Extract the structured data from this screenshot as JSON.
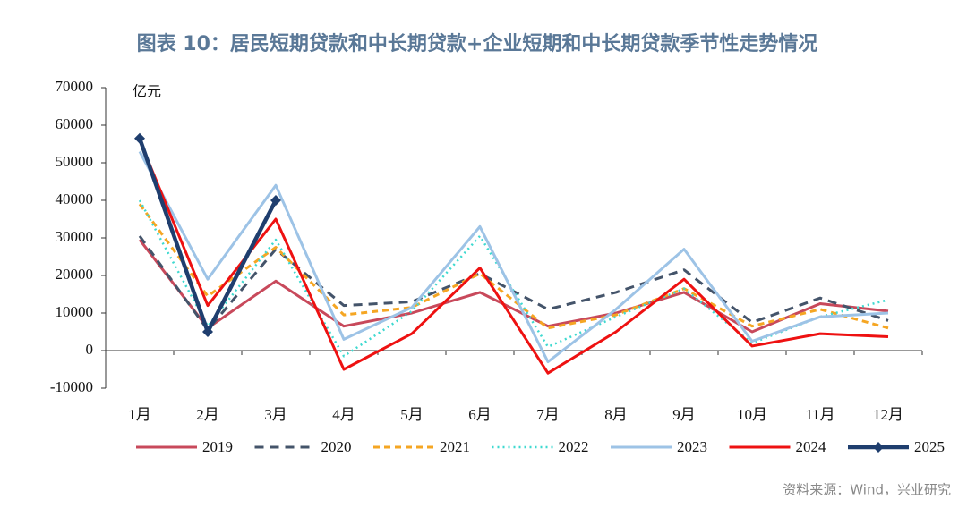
{
  "chart_data": {
    "type": "line",
    "title": "图表 10：居民短期贷款和中长期贷款+企业短期和中长期贷款季节性走势情况",
    "y_unit": "亿元",
    "source": "资料来源：Wind，兴业研究",
    "categories": [
      "1月",
      "2月",
      "3月",
      "4月",
      "5月",
      "6月",
      "7月",
      "8月",
      "9月",
      "10月",
      "11月",
      "12月"
    ],
    "ylim": [
      -10000,
      70000
    ],
    "yticks": [
      -10000,
      0,
      10000,
      20000,
      30000,
      40000,
      50000,
      60000,
      70000
    ],
    "legend": "bottom",
    "series": [
      {
        "name": "2019",
        "color": "#c8495b",
        "style": "solid",
        "values": [
          29500,
          6000,
          18500,
          6500,
          10000,
          15500,
          6500,
          10000,
          15500,
          5000,
          12500,
          10500
        ]
      },
      {
        "name": "2020",
        "color": "#44546a",
        "style": "dashed",
        "values": [
          30500,
          5500,
          27000,
          12000,
          13000,
          20500,
          11000,
          15500,
          21500,
          7500,
          14000,
          8000
        ]
      },
      {
        "name": "2021",
        "color": "#f5a623",
        "style": "dashed",
        "values": [
          39000,
          14500,
          27500,
          9500,
          11500,
          20500,
          6000,
          9500,
          16500,
          6500,
          11000,
          6000
        ]
      },
      {
        "name": "2022",
        "color": "#3fd9d0",
        "style": "dotted",
        "values": [
          40000,
          6500,
          29500,
          -1500,
          10500,
          30500,
          1000,
          9000,
          16500,
          2000,
          9000,
          13500
        ]
      },
      {
        "name": "2023",
        "color": "#9dc3e6",
        "style": "solid",
        "values": [
          53000,
          19000,
          44000,
          3000,
          11500,
          33000,
          -3000,
          11000,
          27000,
          2500,
          9000,
          10000
        ]
      },
      {
        "name": "2024",
        "color": "#ee1111",
        "style": "solid",
        "values": [
          56000,
          12000,
          35000,
          -5000,
          4500,
          22000,
          -6000,
          5000,
          19000,
          1200,
          4500,
          3700
        ]
      },
      {
        "name": "2025",
        "color": "#1f3e6e",
        "style": "marker",
        "values": [
          56500,
          5000,
          40000,
          null,
          null,
          null,
          null,
          null,
          null,
          null,
          null,
          null
        ]
      }
    ]
  }
}
